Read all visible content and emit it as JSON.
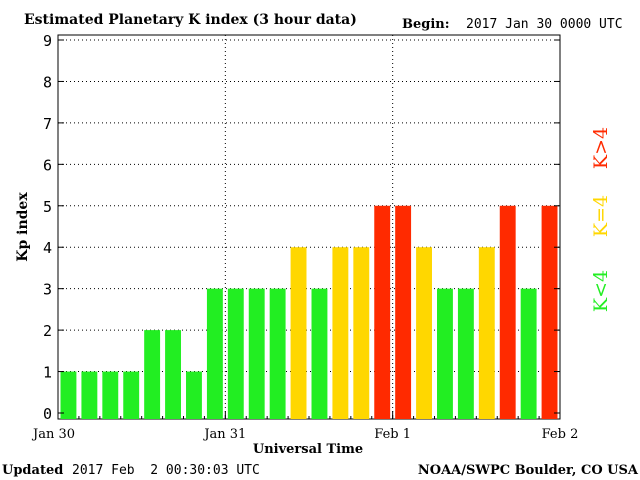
{
  "header": {
    "title": "Estimated Planetary K index (3 hour data)",
    "begin_label": "Begin:",
    "begin_value": "2017 Jan 30 0000 UTC"
  },
  "footer": {
    "updated_label": "Updated",
    "updated_value": "2017 Feb  2 00:30:03 UTC",
    "source": "NOAA/SWPC Boulder, CO USA"
  },
  "legend": {
    "above": "K>4",
    "equal": "K=4",
    "below": "K<4"
  },
  "colors": {
    "below": "#22ee22",
    "equal": "#ffd700",
    "above": "#ff2a00",
    "axis": "#000000",
    "grid": "#000000",
    "background": "#ffffff"
  },
  "chart_data": {
    "type": "bar",
    "title": "Estimated Planetary K index (3 hour data)",
    "xlabel": "Universal Time",
    "ylabel": "Kp index",
    "ylim": [
      0,
      9
    ],
    "yticks": [
      0,
      1,
      2,
      3,
      4,
      5,
      6,
      7,
      8,
      9
    ],
    "grid": true,
    "x_tick_labels": [
      "Jan 30",
      "Jan 31",
      "Feb 1",
      "Feb 2"
    ],
    "interval_hours": 3,
    "values": [
      1,
      1,
      1,
      1,
      2,
      2,
      1,
      3,
      3,
      3,
      3,
      4,
      3,
      4,
      4,
      5,
      5,
      4,
      3,
      3,
      4,
      5,
      3,
      5
    ]
  }
}
